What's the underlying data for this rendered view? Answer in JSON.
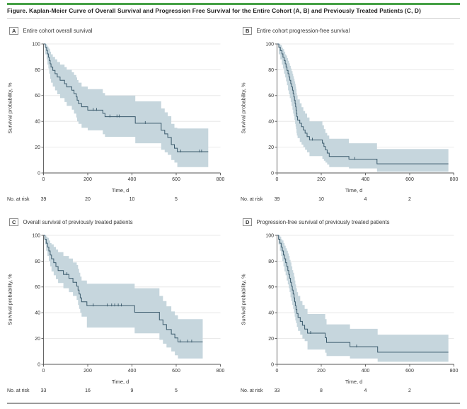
{
  "figure": {
    "title": "Figure. Kaplan-Meier Curve of Overall Survival and Progression Free Survival for the Entire Cohort (A, B) and Previously Treated Patients (C, D)",
    "accent_color": "#45a045",
    "line_color": "#3a5a6c",
    "band_color": "#c6d6dd",
    "grid_color": "#e3e3e3"
  },
  "risk_label": "No. at risk",
  "chart_data": [
    {
      "id": "A",
      "type": "line",
      "subtype": "kaplan-meier-step",
      "title": "Entire cohort overall survival",
      "xlabel": "Time, d",
      "ylabel": "Survival probability, %",
      "xlim": [
        0,
        800
      ],
      "ylim": [
        0,
        100
      ],
      "xticks": [
        0,
        200,
        400,
        600,
        800
      ],
      "yticks": [
        0,
        20,
        40,
        60,
        80,
        100
      ],
      "grid": true,
      "legend": "none",
      "risk_times": [
        0,
        200,
        400,
        600
      ],
      "at_risk": [
        39,
        20,
        10,
        5
      ],
      "end_time": 745,
      "steps": [
        [
          0,
          100
        ],
        [
          8,
          97.4
        ],
        [
          14,
          94.9
        ],
        [
          18,
          92.3
        ],
        [
          22,
          89.7
        ],
        [
          26,
          87.2
        ],
        [
          30,
          84.6
        ],
        [
          34,
          82.1
        ],
        [
          42,
          79.5
        ],
        [
          52,
          76.9
        ],
        [
          62,
          74.4
        ],
        [
          75,
          71.8
        ],
        [
          95,
          69.2
        ],
        [
          105,
          66.7
        ],
        [
          128,
          64.1
        ],
        [
          138,
          61.5
        ],
        [
          148,
          59
        ],
        [
          152,
          56.4
        ],
        [
          158,
          53.8
        ],
        [
          172,
          51.3
        ],
        [
          200,
          48.7
        ],
        [
          268,
          46.2
        ],
        [
          278,
          43.6
        ],
        [
          415,
          38.5
        ],
        [
          532,
          33.1
        ],
        [
          548,
          30.3
        ],
        [
          562,
          27.5
        ],
        [
          578,
          22
        ],
        [
          592,
          19.2
        ],
        [
          605,
          16.5
        ]
      ],
      "censors": [
        225,
        240,
        300,
        332,
        342,
        460,
        620,
        706,
        715
      ],
      "band": [
        [
          0,
          100,
          100
        ],
        [
          8,
          92,
          100
        ],
        [
          14,
          88,
          99
        ],
        [
          18,
          84,
          98
        ],
        [
          22,
          81,
          97
        ],
        [
          26,
          77,
          96
        ],
        [
          30,
          73,
          94
        ],
        [
          34,
          70,
          92
        ],
        [
          42,
          67,
          90
        ],
        [
          52,
          64,
          88
        ],
        [
          62,
          61,
          86
        ],
        [
          75,
          58,
          84
        ],
        [
          95,
          55,
          82
        ],
        [
          105,
          52,
          80
        ],
        [
          128,
          49,
          78
        ],
        [
          138,
          46,
          76
        ],
        [
          148,
          43,
          74
        ],
        [
          152,
          40,
          72
        ],
        [
          158,
          38,
          70
        ],
        [
          172,
          35,
          67
        ],
        [
          200,
          33,
          65
        ],
        [
          268,
          30,
          62
        ],
        [
          278,
          28,
          60
        ],
        [
          415,
          23,
          55.5
        ],
        [
          532,
          18,
          50
        ],
        [
          548,
          16,
          47
        ],
        [
          562,
          14,
          44
        ],
        [
          578,
          10,
          38
        ],
        [
          592,
          8,
          35
        ],
        [
          605,
          4.5,
          34.5
        ]
      ]
    },
    {
      "id": "B",
      "type": "line",
      "subtype": "kaplan-meier-step",
      "title": "Entire cohort progression-free survival",
      "xlabel": "Time, d",
      "ylabel": "Survival probability, %",
      "xlim": [
        0,
        800
      ],
      "ylim": [
        0,
        100
      ],
      "xticks": [
        0,
        200,
        400,
        600,
        800
      ],
      "yticks": [
        0,
        20,
        40,
        60,
        80,
        100
      ],
      "grid": true,
      "legend": "none",
      "risk_times": [
        0,
        200,
        400,
        600
      ],
      "at_risk": [
        39,
        10,
        4,
        2
      ],
      "end_time": 775,
      "steps": [
        [
          0,
          100
        ],
        [
          8,
          97.4
        ],
        [
          15,
          94.9
        ],
        [
          22,
          92.3
        ],
        [
          27,
          89.7
        ],
        [
          32,
          87.2
        ],
        [
          37,
          84.6
        ],
        [
          41,
          82.1
        ],
        [
          45,
          79.5
        ],
        [
          50,
          76.9
        ],
        [
          54,
          74.4
        ],
        [
          58,
          71.8
        ],
        [
          62,
          69.2
        ],
        [
          66,
          66.7
        ],
        [
          70,
          64.1
        ],
        [
          73,
          61.5
        ],
        [
          76,
          59
        ],
        [
          79,
          56.4
        ],
        [
          82,
          53.8
        ],
        [
          84,
          51.3
        ],
        [
          86,
          48.7
        ],
        [
          88,
          46.2
        ],
        [
          90,
          43.6
        ],
        [
          93,
          41
        ],
        [
          103,
          38.5
        ],
        [
          111,
          35.9
        ],
        [
          119,
          33.3
        ],
        [
          127,
          30.8
        ],
        [
          136,
          28.2
        ],
        [
          147,
          25.6
        ],
        [
          205,
          23.1
        ],
        [
          212,
          20.5
        ],
        [
          219,
          17.9
        ],
        [
          227,
          15.4
        ],
        [
          236,
          12.8
        ],
        [
          325,
          10.7
        ],
        [
          452,
          7.1
        ]
      ],
      "censors": [
        160,
        352
      ],
      "band": [
        [
          0,
          100,
          100
        ],
        [
          8,
          92,
          100
        ],
        [
          15,
          88,
          99
        ],
        [
          22,
          84,
          97
        ],
        [
          27,
          81,
          96
        ],
        [
          32,
          77,
          94
        ],
        [
          37,
          74,
          92
        ],
        [
          41,
          71,
          91
        ],
        [
          45,
          68,
          89
        ],
        [
          50,
          64,
          87
        ],
        [
          54,
          61,
          85
        ],
        [
          58,
          58,
          83
        ],
        [
          62,
          55,
          81
        ],
        [
          66,
          52,
          79
        ],
        [
          70,
          49,
          77
        ],
        [
          73,
          46,
          75
        ],
        [
          76,
          44,
          73
        ],
        [
          79,
          41,
          71
        ],
        [
          82,
          38,
          69
        ],
        [
          84,
          36,
          67
        ],
        [
          86,
          34,
          65
        ],
        [
          88,
          31,
          62
        ],
        [
          90,
          29,
          60
        ],
        [
          93,
          27,
          57
        ],
        [
          103,
          24,
          54
        ],
        [
          111,
          22,
          51
        ],
        [
          119,
          20,
          48
        ],
        [
          127,
          18,
          46
        ],
        [
          136,
          16,
          43
        ],
        [
          147,
          13,
          40
        ],
        [
          205,
          11,
          37
        ],
        [
          212,
          9.5,
          34
        ],
        [
          219,
          8,
          31
        ],
        [
          227,
          6.5,
          29
        ],
        [
          236,
          4.5,
          26.5
        ],
        [
          325,
          3.5,
          23
        ],
        [
          452,
          1,
          18.5
        ]
      ]
    },
    {
      "id": "C",
      "type": "line",
      "subtype": "kaplan-meier-step",
      "title": "Overall survival of previously treated patients",
      "xlabel": "Time, d",
      "ylabel": "Survival probability, %",
      "xlim": [
        0,
        800
      ],
      "ylim": [
        0,
        100
      ],
      "xticks": [
        0,
        200,
        400,
        600,
        800
      ],
      "yticks": [
        0,
        20,
        40,
        60,
        80,
        100
      ],
      "grid": true,
      "legend": "none",
      "risk_times": [
        0,
        200,
        400,
        600
      ],
      "at_risk": [
        33,
        16,
        9,
        5
      ],
      "end_time": 720,
      "steps": [
        [
          0,
          100
        ],
        [
          6,
          97
        ],
        [
          12,
          93.9
        ],
        [
          18,
          90.9
        ],
        [
          24,
          87.9
        ],
        [
          30,
          84.8
        ],
        [
          36,
          81.8
        ],
        [
          46,
          78.8
        ],
        [
          56,
          75.8
        ],
        [
          66,
          72.7
        ],
        [
          90,
          69.7
        ],
        [
          115,
          66.7
        ],
        [
          133,
          63.6
        ],
        [
          150,
          60.6
        ],
        [
          156,
          57.6
        ],
        [
          161,
          54.5
        ],
        [
          166,
          51.5
        ],
        [
          172,
          48.5
        ],
        [
          196,
          45.5
        ],
        [
          412,
          40.4
        ],
        [
          524,
          34.5
        ],
        [
          540,
          30.8
        ],
        [
          556,
          27
        ],
        [
          578,
          23.5
        ],
        [
          594,
          20.5
        ],
        [
          608,
          17.5
        ]
      ],
      "censors": [
        106,
        225,
        288,
        308,
        322,
        338,
        352,
        618,
        652,
        670
      ],
      "band": [
        [
          0,
          100,
          100
        ],
        [
          6,
          93,
          100
        ],
        [
          12,
          88,
          99
        ],
        [
          18,
          84,
          98
        ],
        [
          24,
          80,
          96
        ],
        [
          30,
          76,
          94
        ],
        [
          36,
          72,
          93
        ],
        [
          46,
          69,
          91
        ],
        [
          56,
          66,
          89
        ],
        [
          66,
          63,
          87
        ],
        [
          90,
          59,
          84
        ],
        [
          115,
          56,
          82
        ],
        [
          133,
          53,
          79
        ],
        [
          150,
          50,
          77
        ],
        [
          156,
          46,
          74
        ],
        [
          161,
          43,
          71
        ],
        [
          166,
          40,
          68
        ],
        [
          172,
          37,
          65
        ],
        [
          196,
          28.5,
          62.5
        ],
        [
          412,
          24,
          59
        ],
        [
          524,
          19,
          53
        ],
        [
          540,
          16,
          49
        ],
        [
          556,
          13,
          45
        ],
        [
          578,
          10,
          41
        ],
        [
          594,
          7,
          38
        ],
        [
          608,
          4.5,
          35
        ]
      ]
    },
    {
      "id": "D",
      "type": "line",
      "subtype": "kaplan-meier-step",
      "title": "Progression-free survival of previously treated patients",
      "xlabel": "Time, d",
      "ylabel": "Survival probability, %",
      "xlim": [
        0,
        800
      ],
      "ylim": [
        0,
        100
      ],
      "xticks": [
        0,
        200,
        400,
        600,
        800
      ],
      "yticks": [
        0,
        20,
        40,
        60,
        80,
        100
      ],
      "grid": true,
      "legend": "none",
      "risk_times": [
        0,
        200,
        400,
        600
      ],
      "at_risk": [
        33,
        8,
        4,
        2
      ],
      "end_time": 775,
      "steps": [
        [
          0,
          100
        ],
        [
          7,
          97
        ],
        [
          13,
          93.9
        ],
        [
          19,
          90.9
        ],
        [
          24,
          87.9
        ],
        [
          29,
          84.8
        ],
        [
          34,
          81.8
        ],
        [
          39,
          78.8
        ],
        [
          44,
          75.8
        ],
        [
          49,
          72.7
        ],
        [
          53,
          69.7
        ],
        [
          57,
          66.7
        ],
        [
          61,
          63.6
        ],
        [
          65,
          60.6
        ],
        [
          69,
          57.6
        ],
        [
          73,
          54.5
        ],
        [
          77,
          51.5
        ],
        [
          80,
          48.5
        ],
        [
          83,
          45.5
        ],
        [
          86,
          42.4
        ],
        [
          90,
          39.4
        ],
        [
          95,
          36.4
        ],
        [
          105,
          33.3
        ],
        [
          115,
          30.3
        ],
        [
          125,
          27.3
        ],
        [
          138,
          24.2
        ],
        [
          218,
          20.6
        ],
        [
          224,
          17
        ],
        [
          330,
          13.7
        ],
        [
          455,
          9.4
        ]
      ],
      "censors": [
        152,
        360
      ],
      "band": [
        [
          0,
          100,
          100
        ],
        [
          7,
          93,
          100
        ],
        [
          13,
          88,
          99
        ],
        [
          19,
          84,
          97
        ],
        [
          24,
          80,
          96
        ],
        [
          29,
          76,
          94
        ],
        [
          34,
          72,
          92
        ],
        [
          39,
          69,
          90
        ],
        [
          44,
          65,
          88
        ],
        [
          49,
          62,
          86
        ],
        [
          53,
          59,
          84
        ],
        [
          57,
          56,
          81
        ],
        [
          61,
          52,
          79
        ],
        [
          65,
          49,
          76
        ],
        [
          69,
          46,
          73
        ],
        [
          73,
          43,
          71
        ],
        [
          77,
          40,
          68
        ],
        [
          80,
          37,
          65
        ],
        [
          83,
          34,
          62
        ],
        [
          86,
          32,
          59
        ],
        [
          90,
          29,
          56
        ],
        [
          95,
          26,
          53
        ],
        [
          105,
          23,
          49
        ],
        [
          115,
          20,
          46
        ],
        [
          125,
          18,
          43
        ],
        [
          138,
          11.5,
          39
        ],
        [
          218,
          9,
          35
        ],
        [
          224,
          6.5,
          31
        ],
        [
          330,
          4.5,
          27.5
        ],
        [
          455,
          2,
          23
        ]
      ]
    }
  ]
}
